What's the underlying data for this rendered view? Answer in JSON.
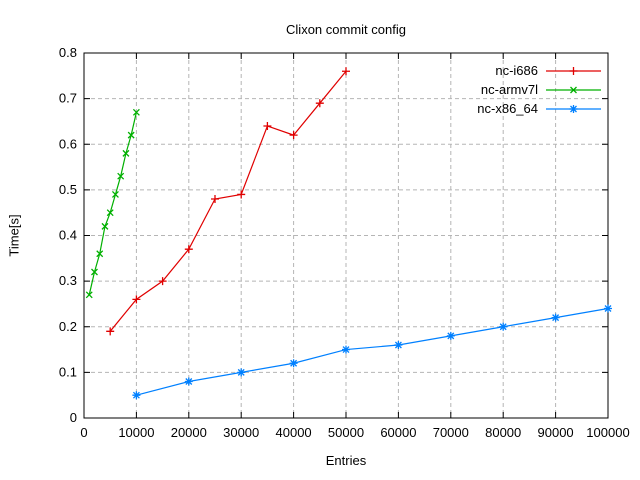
{
  "page": {
    "background": "#ffffff",
    "text_color": "#000000",
    "grid_color": "#b5b5b5",
    "border_color": "#000000"
  },
  "chart_data": {
    "type": "line",
    "title": "Clixon commit config",
    "xlabel": "Entries",
    "ylabel": "Time[s]",
    "xlim": [
      0,
      100000
    ],
    "ylim": [
      0,
      0.8
    ],
    "x_ticks": [
      0,
      10000,
      20000,
      30000,
      40000,
      50000,
      60000,
      70000,
      80000,
      90000,
      100000
    ],
    "y_ticks": [
      0,
      0.1,
      0.2,
      0.3,
      0.4,
      0.5,
      0.6,
      0.7,
      0.8
    ],
    "grid": true,
    "legend_position": "top-right-inside",
    "series": [
      {
        "name": "nc-i686",
        "color": "#e00000",
        "marker": "plus",
        "x": [
          5000,
          10000,
          15000,
          20000,
          25000,
          30000,
          35000,
          40000,
          45000,
          50000
        ],
        "y": [
          0.19,
          0.26,
          0.3,
          0.37,
          0.48,
          0.49,
          0.64,
          0.62,
          0.69,
          0.76
        ]
      },
      {
        "name": "nc-armv7l",
        "color": "#00b000",
        "marker": "cross",
        "x": [
          1000,
          2000,
          3000,
          4000,
          5000,
          6000,
          7000,
          8000,
          9000,
          10000
        ],
        "y": [
          0.27,
          0.32,
          0.36,
          0.42,
          0.45,
          0.49,
          0.53,
          0.58,
          0.62,
          0.67
        ]
      },
      {
        "name": "nc-x86_64",
        "color": "#0080ff",
        "marker": "star",
        "x": [
          10000,
          20000,
          30000,
          40000,
          50000,
          60000,
          70000,
          80000,
          90000,
          100000
        ],
        "y": [
          0.05,
          0.08,
          0.1,
          0.12,
          0.15,
          0.16,
          0.18,
          0.2,
          0.22,
          0.24
        ]
      }
    ]
  }
}
